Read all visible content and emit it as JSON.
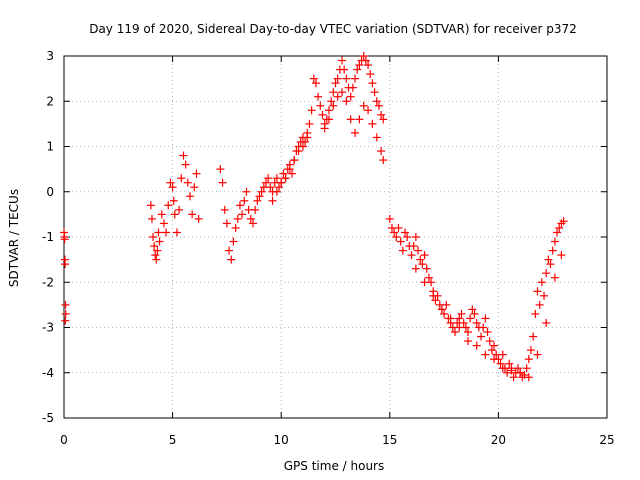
{
  "chart_data": {
    "type": "scatter",
    "title": "Day 119 of 2020, Sidereal Day-to-day VTEC variation (SDTVAR) for receiver p372",
    "xlabel": "GPS time / hours",
    "ylabel": "SDTVAR / TECUs",
    "xlim": [
      0,
      25
    ],
    "ylim": [
      -5,
      3
    ],
    "xticks": [
      0,
      5,
      10,
      15,
      20,
      25
    ],
    "yticks": [
      -5,
      -4,
      -3,
      -2,
      -1,
      0,
      1,
      2,
      3
    ],
    "xtick_labels": [
      "0",
      "5",
      "10",
      "15",
      "20",
      "25"
    ],
    "ytick_labels": [
      "-5",
      "-4",
      "-3",
      "-2",
      "-1",
      "0",
      "1",
      "2",
      "3"
    ],
    "grid": true,
    "marker": "+",
    "legend": "none",
    "series_color": "#ff0000",
    "series": [
      {
        "name": "SDTVAR",
        "x": [
          0.0,
          0.02,
          0.04,
          0.05,
          0.07,
          0.08,
          0.06,
          0.03,
          4.0,
          4.05,
          4.1,
          4.15,
          4.2,
          4.25,
          4.3,
          4.35,
          4.4,
          4.5,
          4.6,
          4.7,
          4.8,
          4.9,
          5.0,
          5.05,
          5.1,
          5.2,
          5.3,
          5.4,
          5.5,
          5.6,
          5.7,
          5.8,
          5.9,
          6.0,
          6.1,
          6.2,
          7.2,
          7.3,
          7.4,
          7.5,
          7.6,
          7.7,
          7.8,
          7.9,
          8.0,
          8.1,
          8.2,
          8.3,
          8.4,
          8.5,
          8.6,
          8.7,
          8.8,
          8.9,
          9.0,
          9.1,
          9.2,
          9.3,
          9.4,
          9.5,
          9.6,
          9.7,
          9.8,
          9.9,
          10.0,
          10.1,
          10.2,
          10.3,
          10.4,
          10.5,
          10.6,
          10.7,
          10.8,
          10.9,
          11.0,
          11.1,
          11.2,
          9.6,
          9.8,
          10.0,
          10.2,
          10.4,
          10.6,
          10.8,
          11.0,
          11.2,
          11.3,
          11.4,
          11.5,
          11.6,
          11.7,
          11.8,
          11.9,
          12.0,
          12.1,
          12.2,
          12.3,
          12.4,
          12.5,
          12.6,
          12.7,
          12.8,
          12.9,
          13.0,
          13.1,
          13.2,
          13.3,
          13.4,
          13.5,
          13.6,
          13.7,
          13.8,
          13.9,
          14.0,
          14.1,
          14.2,
          14.3,
          14.4,
          14.5,
          14.6,
          14.7,
          12.0,
          12.2,
          12.4,
          12.6,
          12.8,
          13.0,
          13.2,
          13.4,
          13.6,
          13.8,
          14.0,
          14.2,
          14.4,
          14.6,
          14.7,
          15.0,
          15.1,
          15.2,
          15.3,
          15.4,
          15.5,
          15.6,
          15.7,
          15.8,
          15.9,
          16.0,
          16.1,
          16.2,
          16.3,
          16.4,
          16.5,
          16.6,
          16.7,
          16.8,
          16.9,
          17.0,
          17.1,
          17.2,
          17.3,
          17.4,
          17.5,
          17.6,
          17.7,
          17.8,
          17.9,
          18.0,
          18.1,
          18.2,
          18.3,
          18.4,
          18.5,
          18.6,
          18.7,
          18.8,
          18.9,
          19.0,
          19.1,
          19.2,
          19.3,
          19.4,
          19.5,
          19.6,
          19.7,
          19.8,
          19.9,
          20.0,
          20.1,
          20.2,
          20.3,
          20.4,
          20.5,
          20.6,
          20.7,
          20.8,
          20.9,
          21.0,
          21.1,
          21.2,
          21.3,
          21.4,
          21.5,
          21.6,
          21.7,
          21.8,
          21.9,
          22.0,
          22.1,
          22.2,
          22.3,
          22.4,
          22.5,
          22.6,
          22.7,
          22.8,
          22.9,
          23.0,
          16.2,
          16.6,
          17.0,
          17.4,
          17.8,
          18.2,
          18.6,
          19.0,
          19.4,
          19.8,
          20.2,
          20.6,
          21.0,
          21.4,
          21.8,
          22.2,
          22.6,
          22.9
        ],
        "y": [
          -0.9,
          -1.0,
          -1.5,
          -1.6,
          -2.5,
          -2.7,
          -2.85,
          -1.05,
          -0.3,
          -0.6,
          -1.0,
          -1.2,
          -1.4,
          -1.5,
          -1.3,
          -0.9,
          -1.1,
          -0.5,
          -0.7,
          -0.9,
          -0.3,
          0.2,
          0.1,
          -0.2,
          -0.5,
          -0.9,
          -0.4,
          0.3,
          0.8,
          0.6,
          0.2,
          -0.1,
          -0.5,
          0.1,
          0.4,
          -0.6,
          0.5,
          0.2,
          -0.4,
          -0.7,
          -1.3,
          -1.5,
          -1.1,
          -0.8,
          -0.6,
          -0.3,
          -0.5,
          -0.2,
          0.0,
          -0.4,
          -0.6,
          -0.7,
          -0.4,
          -0.2,
          -0.1,
          0.0,
          0.1,
          0.2,
          0.3,
          0.1,
          0.0,
          0.2,
          0.3,
          0.1,
          0.2,
          0.4,
          0.3,
          0.5,
          0.6,
          0.4,
          0.7,
          0.9,
          1.0,
          1.1,
          1.2,
          1.1,
          1.3,
          -0.2,
          0.0,
          0.2,
          0.3,
          0.5,
          0.7,
          0.9,
          1.0,
          1.2,
          1.5,
          1.8,
          2.5,
          2.4,
          2.1,
          1.9,
          1.7,
          1.5,
          1.6,
          1.8,
          2.0,
          2.2,
          2.4,
          2.5,
          2.7,
          2.9,
          2.7,
          2.5,
          2.3,
          2.1,
          2.3,
          2.5,
          2.7,
          2.8,
          2.9,
          3.0,
          2.9,
          2.8,
          2.6,
          2.4,
          2.2,
          2.0,
          1.9,
          1.7,
          1.6,
          1.4,
          1.6,
          1.9,
          2.1,
          2.2,
          2.0,
          1.6,
          1.3,
          1.6,
          1.9,
          1.8,
          1.5,
          1.2,
          0.9,
          0.7,
          -0.6,
          -0.8,
          -0.9,
          -1.0,
          -0.8,
          -1.1,
          -1.3,
          -0.9,
          -1.0,
          -1.2,
          -1.4,
          -1.2,
          -1.0,
          -1.3,
          -1.5,
          -1.6,
          -1.4,
          -1.7,
          -1.9,
          -2.0,
          -2.2,
          -2.4,
          -2.3,
          -2.5,
          -2.6,
          -2.7,
          -2.5,
          -2.8,
          -2.9,
          -3.0,
          -3.1,
          -2.9,
          -2.8,
          -2.7,
          -2.9,
          -3.0,
          -3.1,
          -2.8,
          -2.6,
          -2.7,
          -2.9,
          -3.0,
          -3.2,
          -3.0,
          -2.8,
          -3.1,
          -3.3,
          -3.5,
          -3.4,
          -3.6,
          -3.7,
          -3.8,
          -3.6,
          -3.9,
          -4.0,
          -3.8,
          -3.9,
          -4.1,
          -4.0,
          -3.9,
          -4.0,
          -4.1,
          -4.05,
          -3.9,
          -3.7,
          -3.5,
          -3.2,
          -2.7,
          -2.2,
          -2.5,
          -2.0,
          -2.3,
          -1.8,
          -1.5,
          -1.6,
          -1.3,
          -1.1,
          -0.9,
          -0.8,
          -0.7,
          -0.65,
          -1.7,
          -2.0,
          -2.3,
          -2.6,
          -2.8,
          -3.0,
          -3.3,
          -3.4,
          -3.6,
          -3.7,
          -3.9,
          -3.95,
          -4.0,
          -4.1,
          -3.6,
          -2.9,
          -1.9,
          -1.4
        ]
      }
    ]
  }
}
